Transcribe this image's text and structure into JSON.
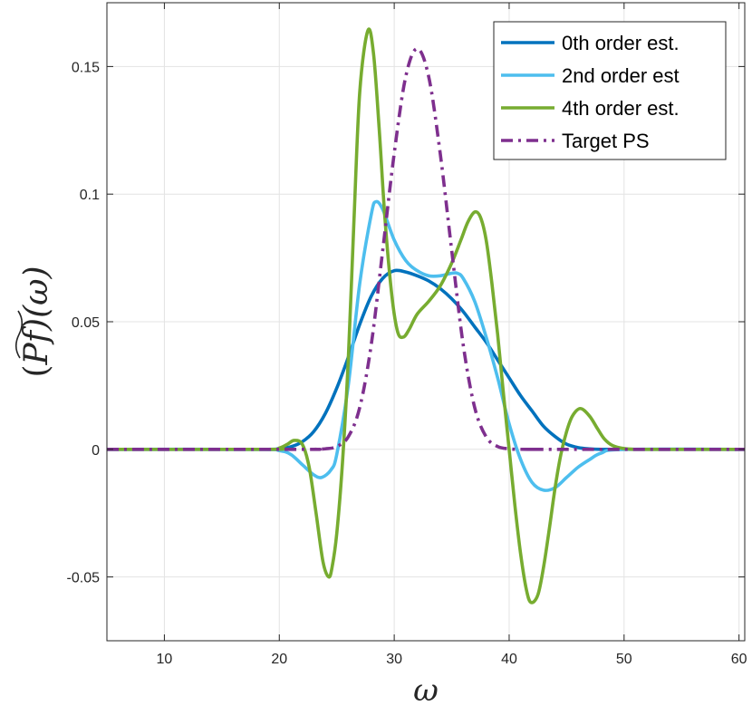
{
  "chart_data": {
    "type": "line",
    "title": "",
    "xlabel": "ω",
    "ylabel": "(Pf)(ω)",
    "ylabel_prefix": "(",
    "ylabel_P": "P",
    "ylabel_f": "f",
    "ylabel_suffix": ")(ω)",
    "xlim": [
      5,
      60.5
    ],
    "ylim": [
      -0.075,
      0.175
    ],
    "xticks": [
      10,
      20,
      30,
      40,
      50,
      60
    ],
    "xtick_labels": [
      "10",
      "20",
      "30",
      "40",
      "50",
      "60"
    ],
    "yticks": [
      -0.05,
      0,
      0.05,
      0.1,
      0.15
    ],
    "ytick_labels": [
      "-0.05",
      "0",
      "0.05",
      "0.1",
      "0.15"
    ],
    "grid": true,
    "legend_position": "top-right",
    "series": [
      {
        "name": "0th order est.",
        "color": "#0072BD",
        "style": "solid",
        "x": [
          5,
          18,
          20,
          21,
          22,
          23,
          24,
          25,
          26,
          27,
          28,
          29,
          30,
          31,
          32,
          33,
          34,
          35,
          36,
          37,
          38,
          39,
          40,
          41,
          42,
          43,
          44,
          45,
          46,
          47,
          48,
          50,
          60.5
        ],
        "y": [
          0,
          0,
          0.0003,
          0.001,
          0.003,
          0.007,
          0.014,
          0.024,
          0.036,
          0.049,
          0.06,
          0.067,
          0.07,
          0.0695,
          0.068,
          0.066,
          0.063,
          0.059,
          0.054,
          0.048,
          0.042,
          0.035,
          0.028,
          0.021,
          0.015,
          0.009,
          0.005,
          0.002,
          0.0007,
          0.0002,
          0,
          0,
          0
        ]
      },
      {
        "name": "2nd order est",
        "color": "#4DBEEE",
        "style": "solid",
        "x": [
          5,
          18,
          20,
          21,
          22,
          23,
          23.7,
          24.5,
          25,
          26,
          27,
          28,
          28.4,
          29,
          30,
          31,
          32,
          33,
          34,
          35,
          35.5,
          36,
          37,
          38,
          39,
          40,
          41,
          42,
          43,
          44,
          45,
          46,
          47,
          48,
          50,
          60.5
        ],
        "y": [
          0,
          0,
          -0.0005,
          -0.002,
          -0.006,
          -0.01,
          -0.011,
          -0.008,
          -0.002,
          0.025,
          0.065,
          0.092,
          0.097,
          0.094,
          0.082,
          0.074,
          0.07,
          0.068,
          0.068,
          0.069,
          0.069,
          0.067,
          0.058,
          0.044,
          0.028,
          0.01,
          -0.004,
          -0.013,
          -0.016,
          -0.015,
          -0.011,
          -0.007,
          -0.004,
          -0.0015,
          0,
          0
        ]
      },
      {
        "name": "4th order est.",
        "color": "#77AC30",
        "style": "solid",
        "x": [
          5,
          19,
          20,
          20.7,
          21.3,
          22,
          22.6,
          23.2,
          23.8,
          24.3,
          24.6,
          25,
          25.5,
          26,
          26.5,
          27,
          27.7,
          28.2,
          28.7,
          29.2,
          29.8,
          30.3,
          30.8,
          31.3,
          32,
          33,
          34,
          35,
          35.8,
          36.4,
          37,
          37.5,
          38,
          38.5,
          39,
          39.5,
          40,
          40.5,
          41,
          41.5,
          41.9,
          42.5,
          43,
          43.5,
          44,
          44.5,
          45,
          45.5,
          46.2,
          47,
          47.7,
          48.3,
          49,
          50,
          51,
          53,
          60.5
        ],
        "y": [
          0,
          0,
          0.0005,
          0.002,
          0.0035,
          0.002,
          -0.007,
          -0.025,
          -0.044,
          -0.05,
          -0.046,
          -0.033,
          -0.005,
          0.035,
          0.09,
          0.14,
          0.164,
          0.155,
          0.125,
          0.09,
          0.06,
          0.046,
          0.044,
          0.047,
          0.053,
          0.058,
          0.064,
          0.073,
          0.082,
          0.089,
          0.093,
          0.091,
          0.082,
          0.065,
          0.045,
          0.022,
          0.0,
          -0.022,
          -0.041,
          -0.055,
          -0.06,
          -0.057,
          -0.046,
          -0.031,
          -0.015,
          -0.002,
          0.007,
          0.013,
          0.016,
          0.013,
          0.008,
          0.004,
          0.0015,
          0.0003,
          0,
          0,
          0
        ]
      },
      {
        "name": "Target PS",
        "color": "#7E2F8E",
        "style": "dashdot",
        "x": [
          5,
          22,
          23,
          24,
          25,
          26,
          27,
          28,
          29,
          30,
          31,
          32,
          33,
          34,
          35,
          36,
          37,
          38,
          39,
          40,
          41,
          42,
          43,
          60.5
        ],
        "y": [
          0,
          0,
          2e-05,
          0.0002,
          0.0011,
          0.0049,
          0.0164,
          0.041,
          0.078,
          0.116,
          0.146,
          0.157,
          0.146,
          0.116,
          0.078,
          0.041,
          0.0164,
          0.0049,
          0.0011,
          0.0002,
          2e-05,
          0,
          0,
          0
        ]
      }
    ]
  }
}
